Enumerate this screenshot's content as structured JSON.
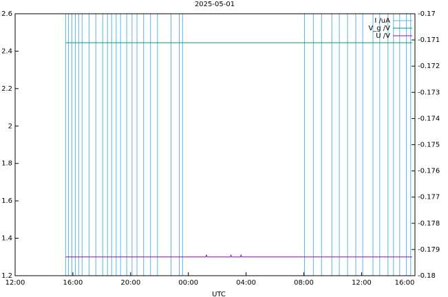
{
  "chart_data": {
    "type": "line",
    "title": "2025-05-01",
    "xlabel": "UTC",
    "xlim": [
      12,
      39.7
    ],
    "xticks": [
      {
        "value": 12,
        "label": "12:00"
      },
      {
        "value": 16,
        "label": "16:00"
      },
      {
        "value": 20,
        "label": "20:00"
      },
      {
        "value": 24,
        "label": "00:00"
      },
      {
        "value": 28,
        "label": "04:00"
      },
      {
        "value": 32,
        "label": "08:00"
      },
      {
        "value": 36,
        "label": "12:00"
      },
      {
        "value": 40,
        "label": "16:00"
      }
    ],
    "ylim": [
      1.2,
      2.6
    ],
    "yticks": [
      1.2,
      1.4,
      1.6,
      1.8,
      2,
      2.2,
      2.4,
      2.6
    ],
    "y2lim": [
      -0.18,
      -0.17
    ],
    "y2ticks": [
      -0.18,
      -0.179,
      -0.178,
      -0.177,
      -0.176,
      -0.175,
      -0.174,
      -0.173,
      -0.172,
      -0.171,
      -0.17
    ],
    "legend": "upper right",
    "series": [
      {
        "name": "I /uA",
        "color": "#56b4e9",
        "x": [
          15.5,
          15.5,
          15.7,
          15.7,
          15.93,
          15.93,
          16.17,
          16.17,
          16.4,
          16.4,
          16.64,
          16.64,
          17.12,
          17.12,
          17.59,
          17.59,
          18.07,
          18.07,
          18.4,
          18.4,
          18.68,
          18.68,
          19.0,
          19.0,
          19.3,
          19.3,
          19.73,
          19.73,
          20.1,
          20.1,
          20.44,
          20.44,
          20.9,
          20.9,
          21.38,
          21.38,
          21.86,
          21.86,
          22.8,
          22.8,
          23.37,
          23.37,
          23.6,
          23.6,
          32.05,
          32.05,
          32.66,
          32.66,
          33.23,
          33.23,
          33.94,
          33.94,
          34.46,
          34.46,
          35.03,
          35.03,
          35.6,
          35.6,
          36.08,
          36.08,
          36.79,
          36.79,
          37.26,
          37.26,
          37.83,
          37.83,
          38.21,
          38.21,
          38.64,
          38.64,
          39.11,
          39.11,
          39.4,
          39.4
        ],
        "values": [
          1.2,
          2.6,
          2.6,
          1.2,
          1.2,
          2.6,
          2.6,
          1.2,
          1.2,
          2.6,
          2.6,
          1.2,
          1.2,
          2.6,
          2.6,
          1.2,
          1.2,
          2.6,
          2.6,
          1.2,
          1.2,
          2.6,
          2.6,
          1.2,
          1.2,
          2.6,
          2.6,
          1.2,
          1.2,
          2.6,
          2.6,
          1.2,
          1.2,
          2.6,
          2.6,
          1.2,
          1.2,
          2.6,
          2.6,
          1.2,
          1.2,
          2.6,
          2.6,
          1.2,
          1.2,
          2.6,
          2.6,
          1.2,
          1.2,
          2.6,
          2.6,
          1.2,
          1.2,
          2.6,
          2.6,
          1.2,
          1.2,
          2.6,
          2.6,
          1.2,
          1.2,
          2.6,
          2.6,
          1.2,
          1.2,
          2.6,
          2.6,
          1.2,
          1.2,
          2.6,
          2.6,
          1.2,
          1.2,
          2.6
        ]
      },
      {
        "name": "V_g /V",
        "color": "#009e73",
        "x": [
          15.5,
          39.5
        ],
        "values": [
          2.445,
          2.445
        ]
      },
      {
        "name": "U /V",
        "color": "#9400d3",
        "x": [
          15.5,
          25.2,
          25.25,
          25.3,
          26.9,
          26.95,
          27.0,
          27.6,
          27.65,
          27.7,
          39.5
        ],
        "values": [
          1.3,
          1.3,
          1.31,
          1.3,
          1.3,
          1.31,
          1.3,
          1.3,
          1.31,
          1.3,
          1.3
        ]
      }
    ]
  }
}
